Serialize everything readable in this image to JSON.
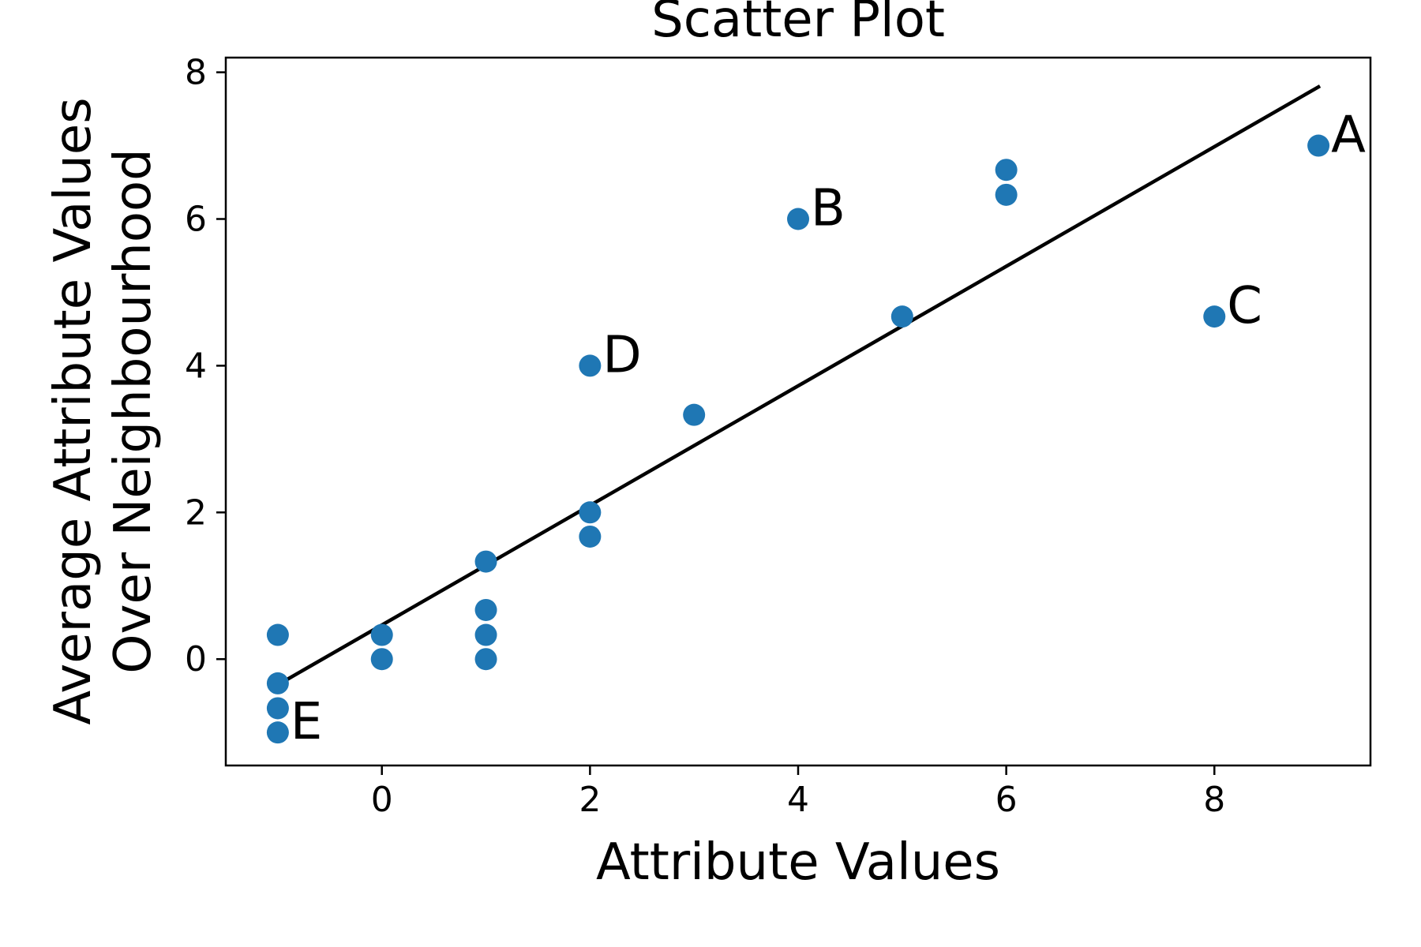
{
  "chart_data": {
    "type": "scatter",
    "title": "Scatter Plot",
    "xlabel": "Attribute Values",
    "ylabel_lines": [
      "Average Attribute Values",
      "Over Neighbourhood"
    ],
    "xlim": [
      -1.5,
      9.5
    ],
    "ylim": [
      -1.45,
      8.2
    ],
    "xticks": [
      0,
      2,
      4,
      6,
      8
    ],
    "yticks": [
      0,
      2,
      4,
      6,
      8
    ],
    "grid": false,
    "point_color": "#1f77b4",
    "line_color": "#000000",
    "series": [
      {
        "type": "scatter",
        "points": [
          {
            "x": -1,
            "y": 0.33
          },
          {
            "x": -1,
            "y": -0.33
          },
          {
            "x": -1,
            "y": -0.67
          },
          {
            "x": -1,
            "y": -1.0
          },
          {
            "x": 0,
            "y": 0.33
          },
          {
            "x": 0,
            "y": 0.0
          },
          {
            "x": 1,
            "y": 1.33
          },
          {
            "x": 1,
            "y": 0.67
          },
          {
            "x": 1,
            "y": 0.33
          },
          {
            "x": 1,
            "y": 0.0
          },
          {
            "x": 2,
            "y": 2.0
          },
          {
            "x": 2,
            "y": 1.67
          },
          {
            "x": 2,
            "y": 4.0
          },
          {
            "x": 3,
            "y": 3.33
          },
          {
            "x": 4,
            "y": 6.0
          },
          {
            "x": 5,
            "y": 4.67
          },
          {
            "x": 6,
            "y": 6.67
          },
          {
            "x": 6,
            "y": 6.33
          },
          {
            "x": 8,
            "y": 4.67
          },
          {
            "x": 9,
            "y": 7.0
          }
        ]
      },
      {
        "type": "line",
        "points": [
          {
            "x": -1,
            "y": -0.35
          },
          {
            "x": 9,
            "y": 7.8
          }
        ]
      }
    ],
    "annotations": [
      {
        "text": "A",
        "x": 9,
        "y": 7.0
      },
      {
        "text": "B",
        "x": 4,
        "y": 6.0
      },
      {
        "text": "C",
        "x": 8,
        "y": 4.67
      },
      {
        "text": "D",
        "x": 2,
        "y": 4.0
      },
      {
        "text": "E",
        "x": -1,
        "y": -1.0
      }
    ]
  }
}
